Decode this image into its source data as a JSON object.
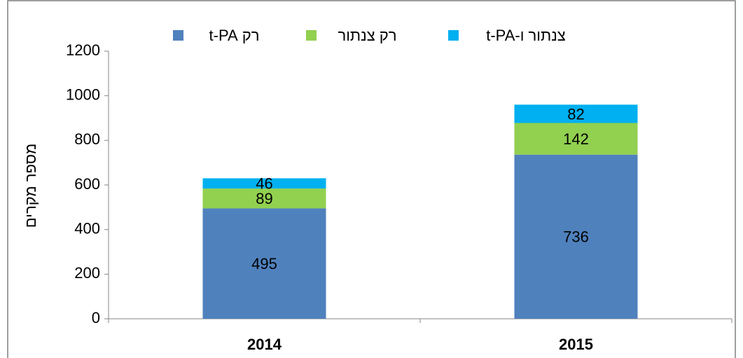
{
  "chart_data": {
    "type": "stacked-bar",
    "y_label": "מספר מקרים",
    "categories": [
      "2014",
      "2015"
    ],
    "series": [
      {
        "name": "רק t-PA",
        "color": "#4f81bd",
        "values": [
          495,
          736
        ]
      },
      {
        "name": "רק צנתור",
        "color": "#92d050",
        "values": [
          89,
          142
        ]
      },
      {
        "name": "צנתור ו-t-PA",
        "color": "#00b0f0",
        "values": [
          46,
          82
        ]
      }
    ],
    "ylim": [
      0,
      1200
    ],
    "yticks": [
      0,
      200,
      400,
      600,
      800,
      1000,
      1200
    ],
    "legend": "top"
  }
}
